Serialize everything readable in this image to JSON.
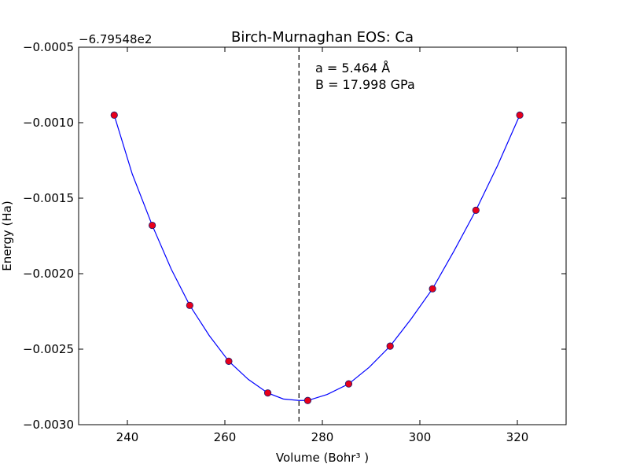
{
  "chart_data": {
    "type": "scatter",
    "title": "Birch-Murnaghan EOS: Ca",
    "xlabel": "Volume (Bohr³ )",
    "ylabel": "Energy (Ha)",
    "y_offset_label": "−6.79548e2",
    "xlim": [
      230,
      330
    ],
    "ylim": [
      -0.003,
      -0.0005
    ],
    "x_ticks": [
      240,
      260,
      280,
      300,
      320
    ],
    "x_tick_labels": [
      "240",
      "260",
      "280",
      "300",
      "320"
    ],
    "y_ticks": [
      -0.0005,
      -0.001,
      -0.0015,
      -0.002,
      -0.0025,
      -0.003
    ],
    "y_tick_labels": [
      "−0.0005",
      "−0.0010",
      "−0.0015",
      "−0.0020",
      "−0.0025",
      "−0.0030"
    ],
    "grid": false,
    "annotations": [
      "a = 5.464 Å",
      "B = 17.998 GPa"
    ],
    "equilibrium_volume": 275.2,
    "series": [
      {
        "type": "scatter",
        "x": [
          237.3,
          245.1,
          252.8,
          260.8,
          268.8,
          277.0,
          285.4,
          293.9,
          302.6,
          311.5,
          320.5
        ],
        "y": [
          -0.00095,
          -0.00168,
          -0.00221,
          -0.00258,
          -0.00279,
          -0.00284,
          -0.00273,
          -0.00248,
          -0.0021,
          -0.00158,
          -0.00095
        ],
        "color": "#e8001b"
      },
      {
        "type": "line",
        "x": [
          237.3,
          241.0,
          245.1,
          249.0,
          252.8,
          256.8,
          260.8,
          264.8,
          268.8,
          272.0,
          275.2,
          277.0,
          281.0,
          285.4,
          289.6,
          293.9,
          298.2,
          302.6,
          307.0,
          311.5,
          316.0,
          320.5
        ],
        "y": [
          -0.00095,
          -0.00134,
          -0.00168,
          -0.00197,
          -0.00221,
          -0.00241,
          -0.00258,
          -0.0027,
          -0.00279,
          -0.00283,
          -0.00284,
          -0.00284,
          -0.0028,
          -0.00273,
          -0.00262,
          -0.00248,
          -0.0023,
          -0.0021,
          -0.00185,
          -0.00158,
          -0.00128,
          -0.00095
        ],
        "color": "#0000ff"
      }
    ],
    "colors": {
      "line": "#0000ff",
      "marker_fill": "#e8001b",
      "marker_edge": "#1a1a6e",
      "vline": "#000000",
      "axes": "#000000"
    }
  }
}
